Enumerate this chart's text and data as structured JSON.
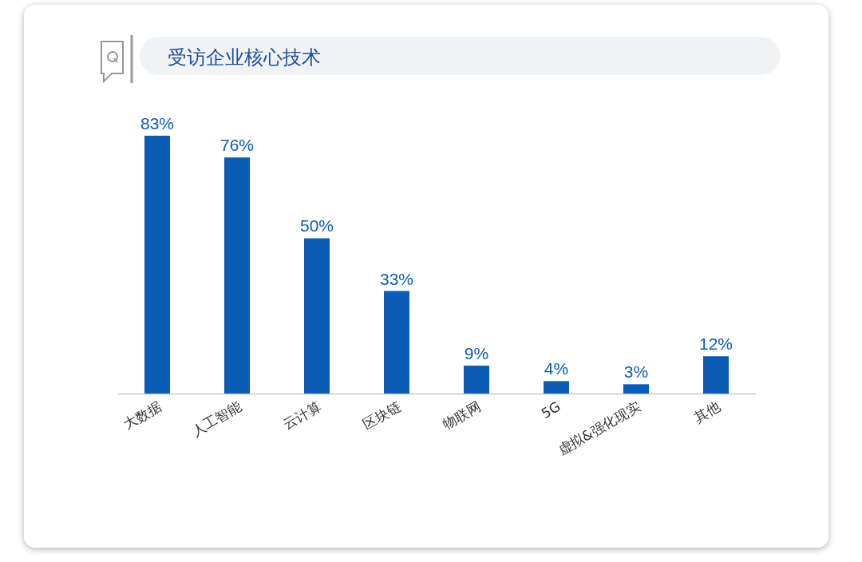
{
  "chart_data": {
    "type": "bar",
    "title": "受访企业核心技术",
    "categories": [
      "大数据",
      "人工智能",
      "云计算",
      "区块链",
      "物联网",
      "5G",
      "虚拟&强化现实",
      "其他"
    ],
    "values": [
      83,
      76,
      50,
      33,
      9,
      4,
      3,
      12
    ],
    "value_labels": [
      "83%",
      "76%",
      "50%",
      "33%",
      "9%",
      "4%",
      "3%",
      "12%"
    ],
    "color": "#0b5cb5"
  }
}
